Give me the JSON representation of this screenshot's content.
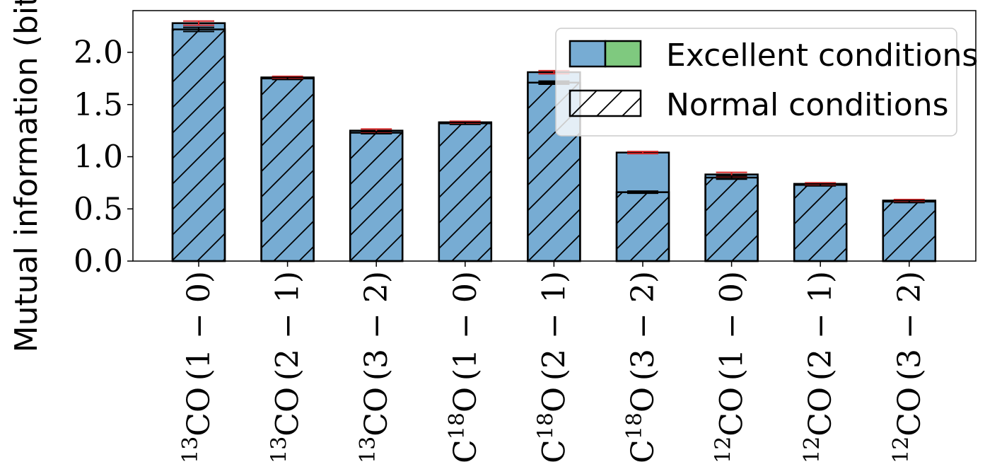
{
  "chart_data": {
    "type": "bar",
    "title": "",
    "xlabel": "",
    "ylabel": "Mutual information (bits)",
    "ylim": [
      0,
      2.4
    ],
    "yticks": [
      0.0,
      0.5,
      1.0,
      1.5,
      2.0
    ],
    "ytick_labels": [
      "0.0",
      "0.5",
      "1.0",
      "1.5",
      "2.0"
    ],
    "grid": false,
    "legend_position": "top-right",
    "categories": [
      {
        "sup": "13",
        "pre": "",
        "mid": "CO",
        "post": "(1 − 0)"
      },
      {
        "sup": "13",
        "pre": "",
        "mid": "CO",
        "post": "(2 − 1)"
      },
      {
        "sup": "13",
        "pre": "",
        "mid": "CO",
        "post": "(3 − 2)"
      },
      {
        "sup": "18",
        "pre": "C",
        "mid": "O",
        "post": "(1 − 0)"
      },
      {
        "sup": "18",
        "pre": "C",
        "mid": "O",
        "post": "(2 − 1)"
      },
      {
        "sup": "18",
        "pre": "C",
        "mid": "O",
        "post": "(3 − 2)"
      },
      {
        "sup": "12",
        "pre": "",
        "mid": "CO",
        "post": "(1 − 0)"
      },
      {
        "sup": "12",
        "pre": "",
        "mid": "CO",
        "post": "(2 − 1)"
      },
      {
        "sup": "12",
        "pre": "",
        "mid": "CO",
        "post": "(3 − 2)"
      }
    ],
    "series": [
      {
        "name": "Excellent conditions",
        "values": [
          2.28,
          1.76,
          1.25,
          1.33,
          1.81,
          1.04,
          0.83,
          0.74,
          0.58
        ],
        "error": [
          0.02,
          0.01,
          0.015,
          0.01,
          0.015,
          0.01,
          0.02,
          0.01,
          0.01
        ]
      },
      {
        "name": "Normal conditions",
        "values": [
          2.22,
          1.75,
          1.23,
          1.32,
          1.71,
          0.66,
          0.8,
          0.73,
          0.57
        ],
        "error": [
          0.02,
          0.01,
          0.01,
          0.01,
          0.015,
          0.01,
          0.015,
          0.01,
          0.01
        ]
      }
    ],
    "colors": {
      "bar_fill": "#77acd3",
      "legend_green": "#7fc97f",
      "error_excellent": "#d62728",
      "edge": "#000000"
    }
  },
  "legend": {
    "excellent_label": "Excellent conditions",
    "normal_label": "Normal conditions"
  }
}
